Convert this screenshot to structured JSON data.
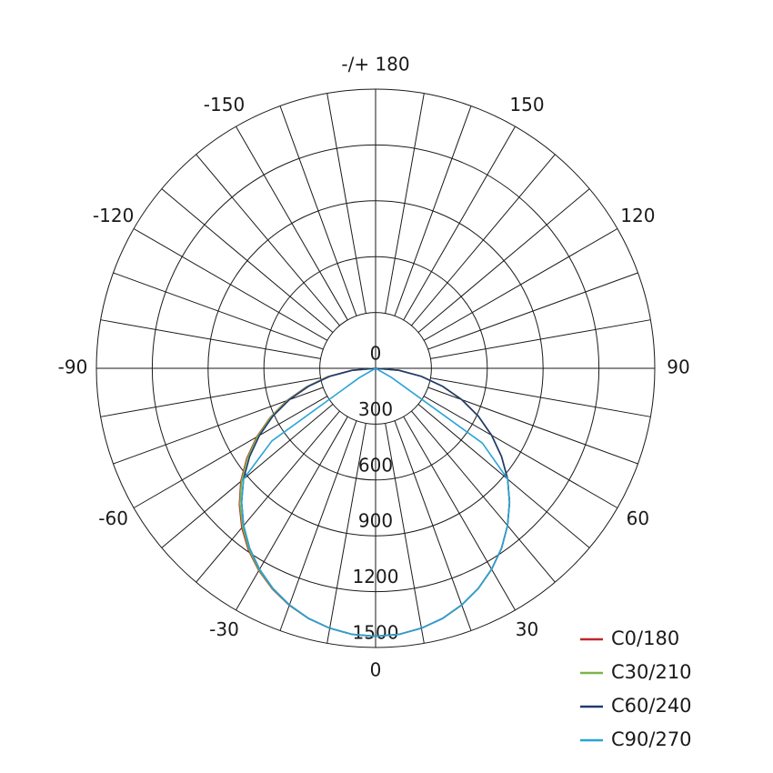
{
  "chart_data": {
    "type": "polar",
    "angles": [
      -90,
      -85,
      -80,
      -75,
      -70,
      -65,
      -60,
      -55,
      -50,
      -45,
      -40,
      -35,
      -30,
      -25,
      -20,
      -15,
      -10,
      -5,
      0,
      5,
      10,
      15,
      20,
      25,
      30,
      35,
      40,
      45,
      50,
      55,
      60,
      65,
      70,
      75,
      80,
      85,
      90
    ],
    "series": [
      {
        "name": "C0/180",
        "color": "#c0272d",
        "values": [
          0,
          130,
          262,
          385,
          508,
          625,
          738,
          845,
          945,
          1035,
          1118,
          1192,
          1255,
          1310,
          1355,
          1392,
          1418,
          1435,
          1440,
          1435,
          1418,
          1391,
          1353,
          1305,
          1247,
          1180,
          1103,
          1018,
          926,
          826,
          720,
          609,
          493,
          373,
          250,
          126,
          0
        ]
      },
      {
        "name": "C30/210",
        "color": "#7ab648",
        "values": [
          0,
          128,
          258,
          380,
          503,
          620,
          733,
          840,
          940,
          1030,
          1112,
          1187,
          1252,
          1308,
          1354,
          1391,
          1418,
          1435,
          1440,
          1435,
          1418,
          1391,
          1353,
          1305,
          1247,
          1180,
          1103,
          1018,
          926,
          826,
          720,
          609,
          493,
          373,
          250,
          126,
          0
        ]
      },
      {
        "name": "C60/240",
        "color": "#1f3b73",
        "values": [
          0,
          126,
          250,
          373,
          493,
          609,
          720,
          826,
          926,
          1018,
          1103,
          1180,
          1247,
          1305,
          1353,
          1391,
          1418,
          1435,
          1440,
          1435,
          1418,
          1391,
          1353,
          1305,
          1247,
          1180,
          1103,
          1018,
          926,
          826,
          720,
          609,
          493,
          373,
          250,
          126,
          0
        ]
      },
      {
        "name": "C90/270",
        "color": "#2aa3d6",
        "values": [
          0,
          0,
          0,
          0,
          0,
          0,
          100,
          680,
          926,
          1018,
          1103,
          1180,
          1247,
          1305,
          1353,
          1391,
          1418,
          1435,
          1440,
          1435,
          1418,
          1391,
          1353,
          1305,
          1247,
          1180,
          1103,
          1018,
          926,
          700,
          100,
          0,
          0,
          0,
          0,
          0,
          0
        ]
      }
    ],
    "rlim": [
      0,
      1500
    ],
    "rticks": [
      0,
      300,
      600,
      900,
      1200,
      1500
    ],
    "angle_ticks": [
      -150,
      -120,
      -90,
      -60,
      -30,
      0,
      30,
      60,
      90,
      120,
      150,
      {
        "value": 180,
        "label": "-/+ 180"
      }
    ],
    "grid": true,
    "legend": "lower right"
  }
}
